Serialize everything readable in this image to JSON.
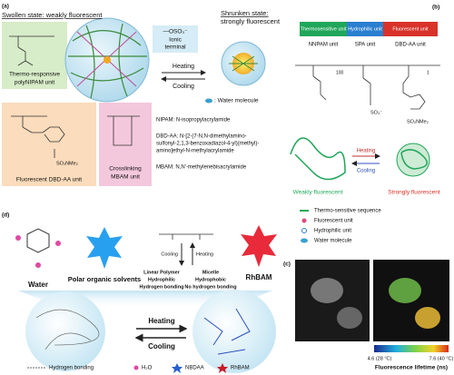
{
  "panel_a": {
    "label": "(a)",
    "swollen": "Swollen state: weakly fluorescent",
    "shrunken": [
      "Shrunken state:",
      "strongly fluorescent"
    ],
    "polynipam": [
      "Thermo-responsive",
      "polyNIPAM unit"
    ],
    "ionic": [
      "—OSO₃⁻",
      "Ionic",
      "terminal"
    ],
    "heating": "Heating",
    "cooling": "Cooling",
    "water": ": Water molecule",
    "dbdaa": "Fluorescent DBD-AA unit",
    "dbdaa_group": "SO₂NMe₂",
    "mbam": [
      "Crosslinking",
      "MBAM unit"
    ],
    "definitions": [
      "NIPAM: N-isopropylacrylamide",
      "DBD-AA: N-[2-(7-N,N-dimethylamino-",
      "sulfonyl-2,1,3-benzoxadiazol-4-yl)(methyl)-",
      "amino]ethyl-N-methylacrylamide",
      "MBAM: N,N'-methylenebisacrylamide"
    ]
  },
  "panel_b": {
    "label": "(b)",
    "bar": [
      "Thermosensitive unit",
      "Hydrophilic unit",
      "Fluorescent unit"
    ],
    "units": [
      "NNPAM unit",
      "SPA unit",
      "DBD-AA unit"
    ],
    "subscripts": [
      "100",
      "1"
    ],
    "groups": [
      "SO₃⁻",
      "SO₂NMe₂"
    ],
    "heating": "Heating",
    "cooling": "Cooling",
    "weak": "Weakly fluorescent",
    "strong": "Strongly fluorescent",
    "legend": [
      "Thermo-sensitive sequence",
      "Fluorescent unit",
      "Hydrophilic unit",
      "Water molecule"
    ]
  },
  "panel_d": {
    "label": "(d)",
    "water": "Water",
    "solvents": "Polar organic solvents",
    "cooling": "Cooling",
    "heating": "Heating",
    "linear": [
      "Linear Polymer",
      "Hydrophilic",
      "Hydrogen bonding"
    ],
    "micelle": [
      "Micelle",
      "Hydrophobic",
      "No hydrogen bonding"
    ],
    "rhbam": "RhBAM",
    "big_heating": "Heating",
    "big_cooling": "Cooling",
    "legend": [
      "Hydrogen bonding",
      "H₂O",
      "NBDAA",
      "RhBAM"
    ]
  },
  "panel_c": {
    "label": "(c)",
    "low": "4.6 (28 °C)",
    "high": "7.6 (40 °C)",
    "colorbar": "Fluorescence lifetime (ns)"
  }
}
